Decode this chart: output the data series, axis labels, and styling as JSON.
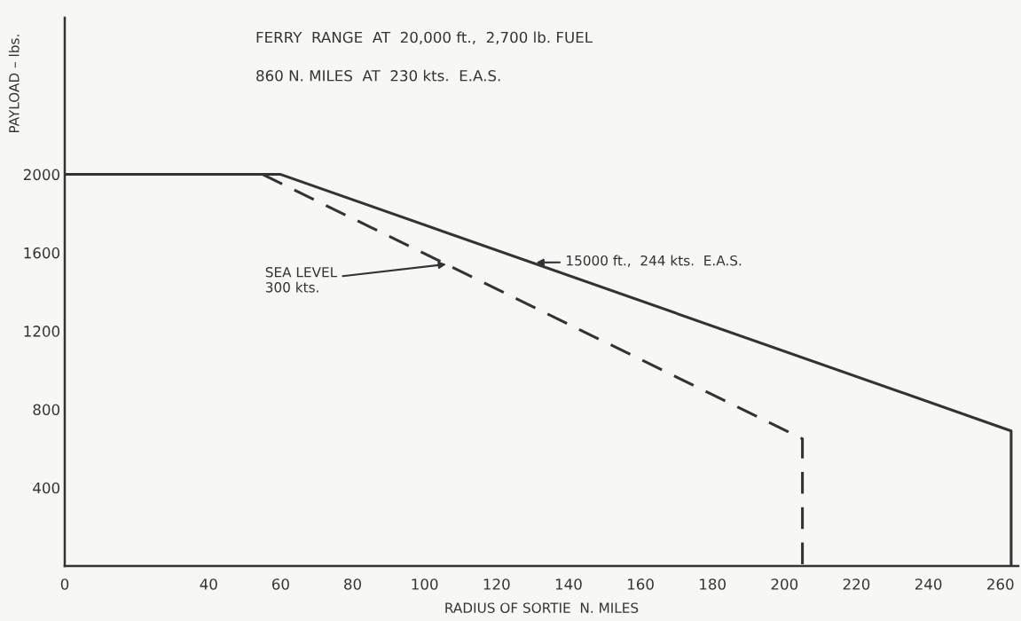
{
  "chart_data": {
    "type": "line",
    "xlabel": "RADIUS OF SORTIE  N. MILES",
    "ylabel": "PAYLOAD – lbs.",
    "series": [
      {
        "color": "#333333",
        "line_style": "solid",
        "x": [
          0,
          60,
          263,
          263
        ],
        "values": [
          2000,
          2000,
          690,
          0
        ]
      },
      {
        "color": "#333333",
        "line_style": "dashed",
        "x": [
          55,
          205,
          205
        ],
        "values": [
          2000,
          650,
          0
        ]
      }
    ],
    "xlim": [
      0,
      265
    ],
    "xticks": [
      0,
      40,
      60,
      80,
      100,
      120,
      140,
      160,
      180,
      200,
      220,
      240,
      260
    ],
    "ylim": [
      0,
      2800
    ],
    "yticks": [
      400,
      800,
      1200,
      1600,
      2000
    ],
    "grid": false,
    "legend": false,
    "marker": "none",
    "annotations": [
      "FERRY  RANGE  AT  20,000 ft.,  2,700 lb. FUEL",
      "860 N. MILES  AT  230 kts.  E.A.S.",
      {
        "text": "15000 ft.,  244 kts.  E.A.S.",
        "x": 131,
        "y": 1550
      },
      {
        "text": "SEA LEVEL\n300 kts.",
        "x": 106,
        "y": 1541
      }
    ]
  }
}
